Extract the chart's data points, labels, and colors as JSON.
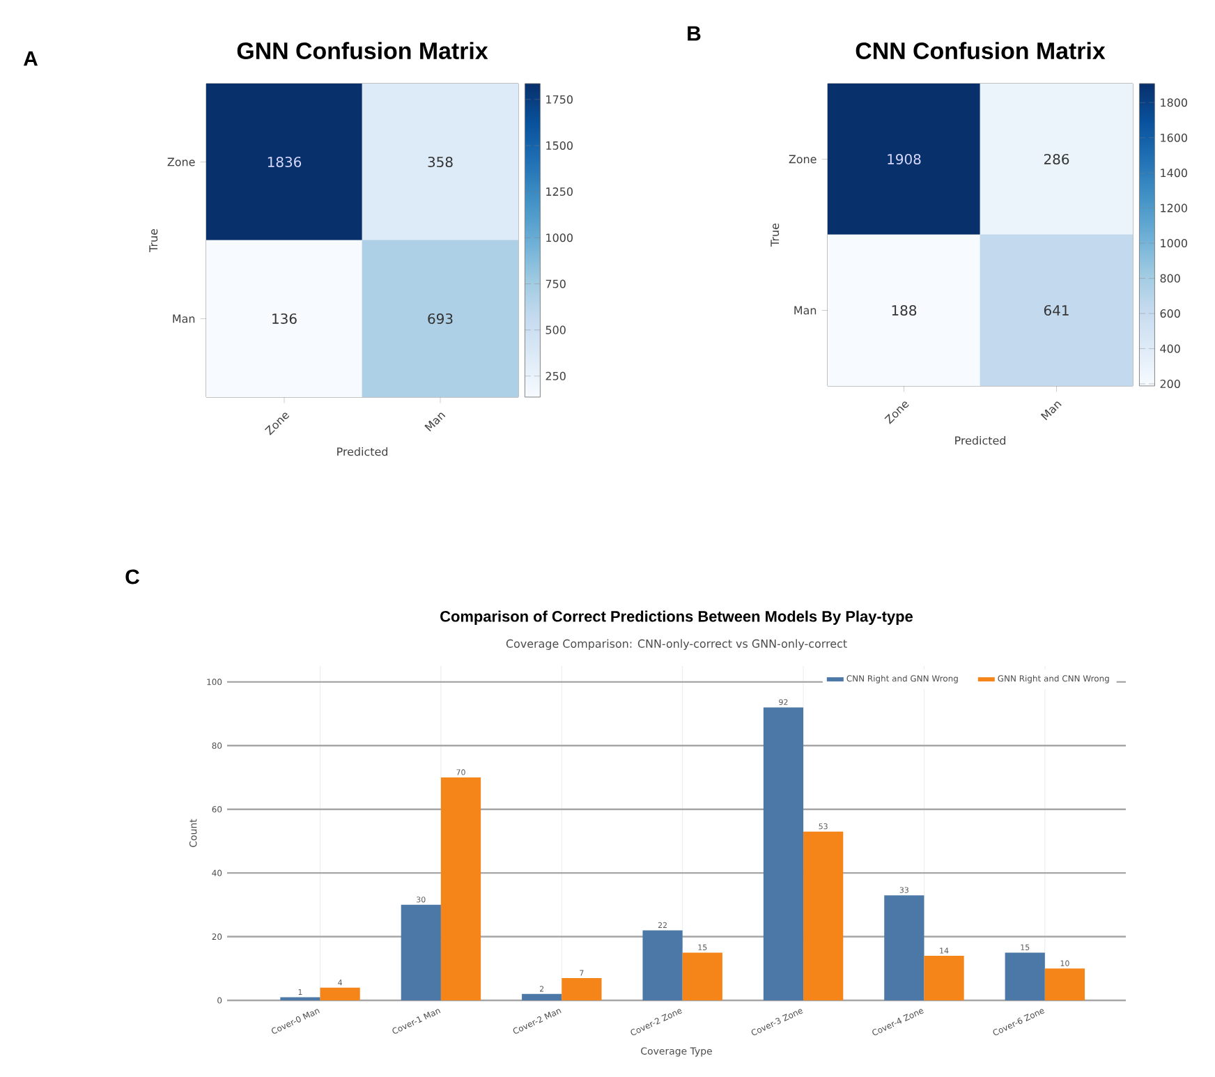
{
  "chart_data": [
    {
      "type": "heatmap",
      "title": "GNN Confusion Matrix",
      "xlabel": "Predicted",
      "ylabel": "True",
      "annotations": [
        "A"
      ],
      "categories": [
        "Zone",
        "Man"
      ],
      "y_categories": [
        "Zone",
        "Man"
      ],
      "cells": [
        [
          1836,
          358
        ],
        [
          136,
          693
        ]
      ],
      "clim": [
        136,
        1836
      ],
      "cticks": [
        250,
        500,
        750,
        1000,
        1250,
        1500,
        1750
      ],
      "data_labels": true
    },
    {
      "type": "heatmap",
      "title": "CNN Confusion Matrix",
      "xlabel": "Predicted",
      "ylabel": "True",
      "annotations": [
        "B"
      ],
      "categories": [
        "Zone",
        "Man"
      ],
      "y_categories": [
        "Zone",
        "Man"
      ],
      "cells": [
        [
          1908,
          286
        ],
        [
          188,
          641
        ]
      ],
      "clim": [
        188,
        1908
      ],
      "cticks": [
        200,
        400,
        600,
        800,
        1000,
        1200,
        1400,
        1600,
        1800
      ],
      "data_labels": true
    },
    {
      "type": "bar",
      "title": "Comparison of Correct Predictions Between Models By Play-type",
      "subtitle": "Coverage Comparison: CNN-only-correct vs GNN-only-correct",
      "xlabel": "Coverage Type",
      "ylabel": "Count",
      "annotations": [
        "C"
      ],
      "categories": [
        "Cover-0 Man",
        "Cover-1 Man",
        "Cover-2 Man",
        "Cover-2 Zone",
        "Cover-3 Zone",
        "Cover-4 Zone",
        "Cover-6 Zone"
      ],
      "series": [
        {
          "name": "CNN Right and GNN Wrong",
          "color": "#4c78a8",
          "values": [
            1,
            30,
            2,
            22,
            92,
            33,
            15
          ]
        },
        {
          "name": "GNN Right and CNN Wrong",
          "color": "#f58518",
          "values": [
            4,
            70,
            7,
            15,
            53,
            14,
            10
          ]
        }
      ],
      "ylim": [
        0,
        105
      ],
      "yticks": [
        0,
        20,
        40,
        60,
        80,
        100
      ],
      "grid": true,
      "legend": "top right",
      "data_labels": true
    }
  ]
}
